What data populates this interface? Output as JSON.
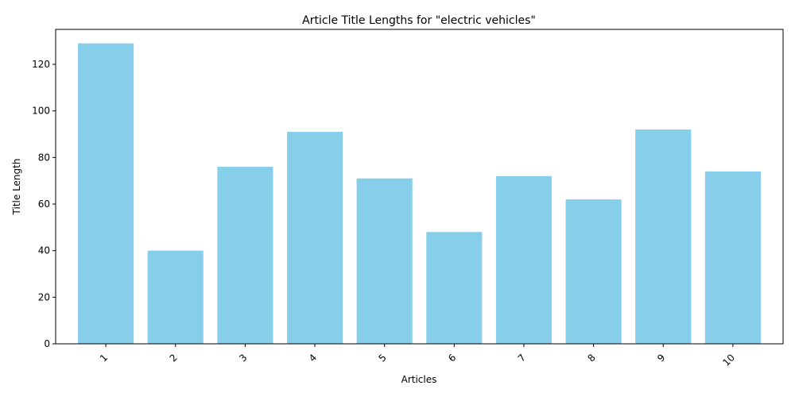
{
  "chart_data": {
    "type": "bar",
    "title": "Article Title Lengths for \"electric vehicles\"",
    "xlabel": "Articles",
    "ylabel": "Title Length",
    "categories": [
      "1",
      "2",
      "3",
      "4",
      "5",
      "6",
      "7",
      "8",
      "9",
      "10"
    ],
    "values": [
      129,
      40,
      76,
      91,
      71,
      48,
      72,
      62,
      92,
      74
    ],
    "ylim": [
      0,
      135
    ],
    "yticks": [
      0,
      20,
      40,
      60,
      80,
      100,
      120
    ],
    "bar_color": "#87CEEB",
    "grid": false,
    "legend": "none",
    "xtick_rotation": 45
  }
}
